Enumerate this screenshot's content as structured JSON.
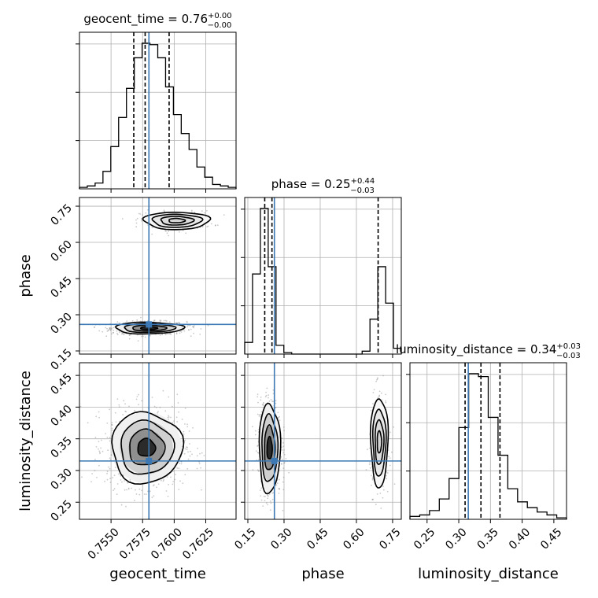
{
  "colors": {
    "truth": "#3b78b4",
    "hist": "#000000",
    "grid": "#b0b0b0",
    "scatter": "#8a8a8a",
    "axes": "#000000"
  },
  "chart_data": {
    "type": "corner",
    "parameters": [
      "geocent_time",
      "phase",
      "luminosity_distance"
    ],
    "titles": [
      {
        "text": "geocent_time = 0.76",
        "plus": "+0.00",
        "minus": "−0.00"
      },
      {
        "text": "phase = 0.25",
        "plus": "+0.44",
        "minus": "−0.03"
      },
      {
        "text": "luminosity_distance = 0.34",
        "plus": "+0.03",
        "minus": "−0.03"
      }
    ],
    "truths": {
      "geocent_time": 0.758,
      "phase": 0.26,
      "luminosity_distance": 0.315
    },
    "ranges": {
      "geocent_time": [
        0.7525,
        0.7649
      ],
      "phase": [
        0.137,
        0.786
      ],
      "luminosity_distance": [
        0.223,
        0.47
      ]
    },
    "ticks": {
      "geocent_time": {
        "values": [
          0.755,
          0.7575,
          0.76,
          0.7625
        ],
        "labels": [
          "0.7550",
          "0.7575",
          "0.7600",
          "0.7625"
        ]
      },
      "phase": {
        "values": [
          0.15,
          0.3,
          0.45,
          0.6,
          0.75
        ],
        "labels": [
          "0.15",
          "0.30",
          "0.45",
          "0.60",
          "0.75"
        ]
      },
      "luminosity_distance": {
        "values": [
          0.25,
          0.3,
          0.35,
          0.4,
          0.45
        ],
        "labels": [
          "0.25",
          "0.30",
          "0.35",
          "0.40",
          "0.45"
        ]
      }
    },
    "quantiles": {
      "geocent_time": [
        0.7568,
        0.7577,
        0.7596
      ],
      "phase": [
        0.22,
        0.25,
        0.69
      ],
      "luminosity_distance": [
        0.31,
        0.335,
        0.365
      ]
    },
    "histograms": {
      "geocent_time": {
        "edges_range": [
          0.7525,
          0.7649
        ],
        "counts": [
          1,
          2,
          4,
          12,
          29,
          49,
          69,
          90,
          100,
          99,
          90,
          70,
          51,
          38,
          27,
          15,
          8,
          3,
          2,
          1
        ]
      },
      "phase": {
        "edges_range": [
          0.137,
          0.786
        ],
        "counts": [
          8,
          55,
          100,
          60,
          6,
          1,
          0,
          0,
          0,
          0,
          0,
          0,
          0,
          0,
          0,
          2,
          24,
          60,
          35,
          4
        ]
      },
      "luminosity_distance": {
        "edges_range": [
          0.223,
          0.47
        ],
        "counts": [
          2,
          3,
          6,
          14,
          28,
          63,
          100,
          98,
          70,
          44,
          21,
          12,
          8,
          5,
          3,
          1
        ]
      }
    },
    "histogram_max": {
      "geocent_time": 100,
      "phase": 100,
      "luminosity_distance": 100
    },
    "hist_y_ticks": [
      0.33,
      0.66,
      0.99
    ],
    "modes": {
      "phase_vs_geocent_time": [
        {
          "cx": 0.758,
          "cy": 0.245,
          "sx": 0.00135,
          "sy": 0.012,
          "n": 800
        },
        {
          "cx": 0.7602,
          "cy": 0.69,
          "sx": 0.0013,
          "sy": 0.018,
          "n": 260
        }
      ],
      "luminosity_distance_vs_geocent_time": [
        {
          "cx": 0.7578,
          "cy": 0.336,
          "sx": 0.0014,
          "sy": 0.028,
          "n": 1000
        }
      ],
      "luminosity_distance_vs_phase": [
        {
          "cx": 0.24,
          "cy": 0.335,
          "sx": 0.022,
          "sy": 0.035,
          "n": 700
        },
        {
          "cx": 0.695,
          "cy": 0.345,
          "sx": 0.018,
          "sy": 0.035,
          "n": 300
        }
      ]
    },
    "contour_levels_sigma": [
      0.5,
      1.0,
      1.5,
      2.0
    ]
  }
}
